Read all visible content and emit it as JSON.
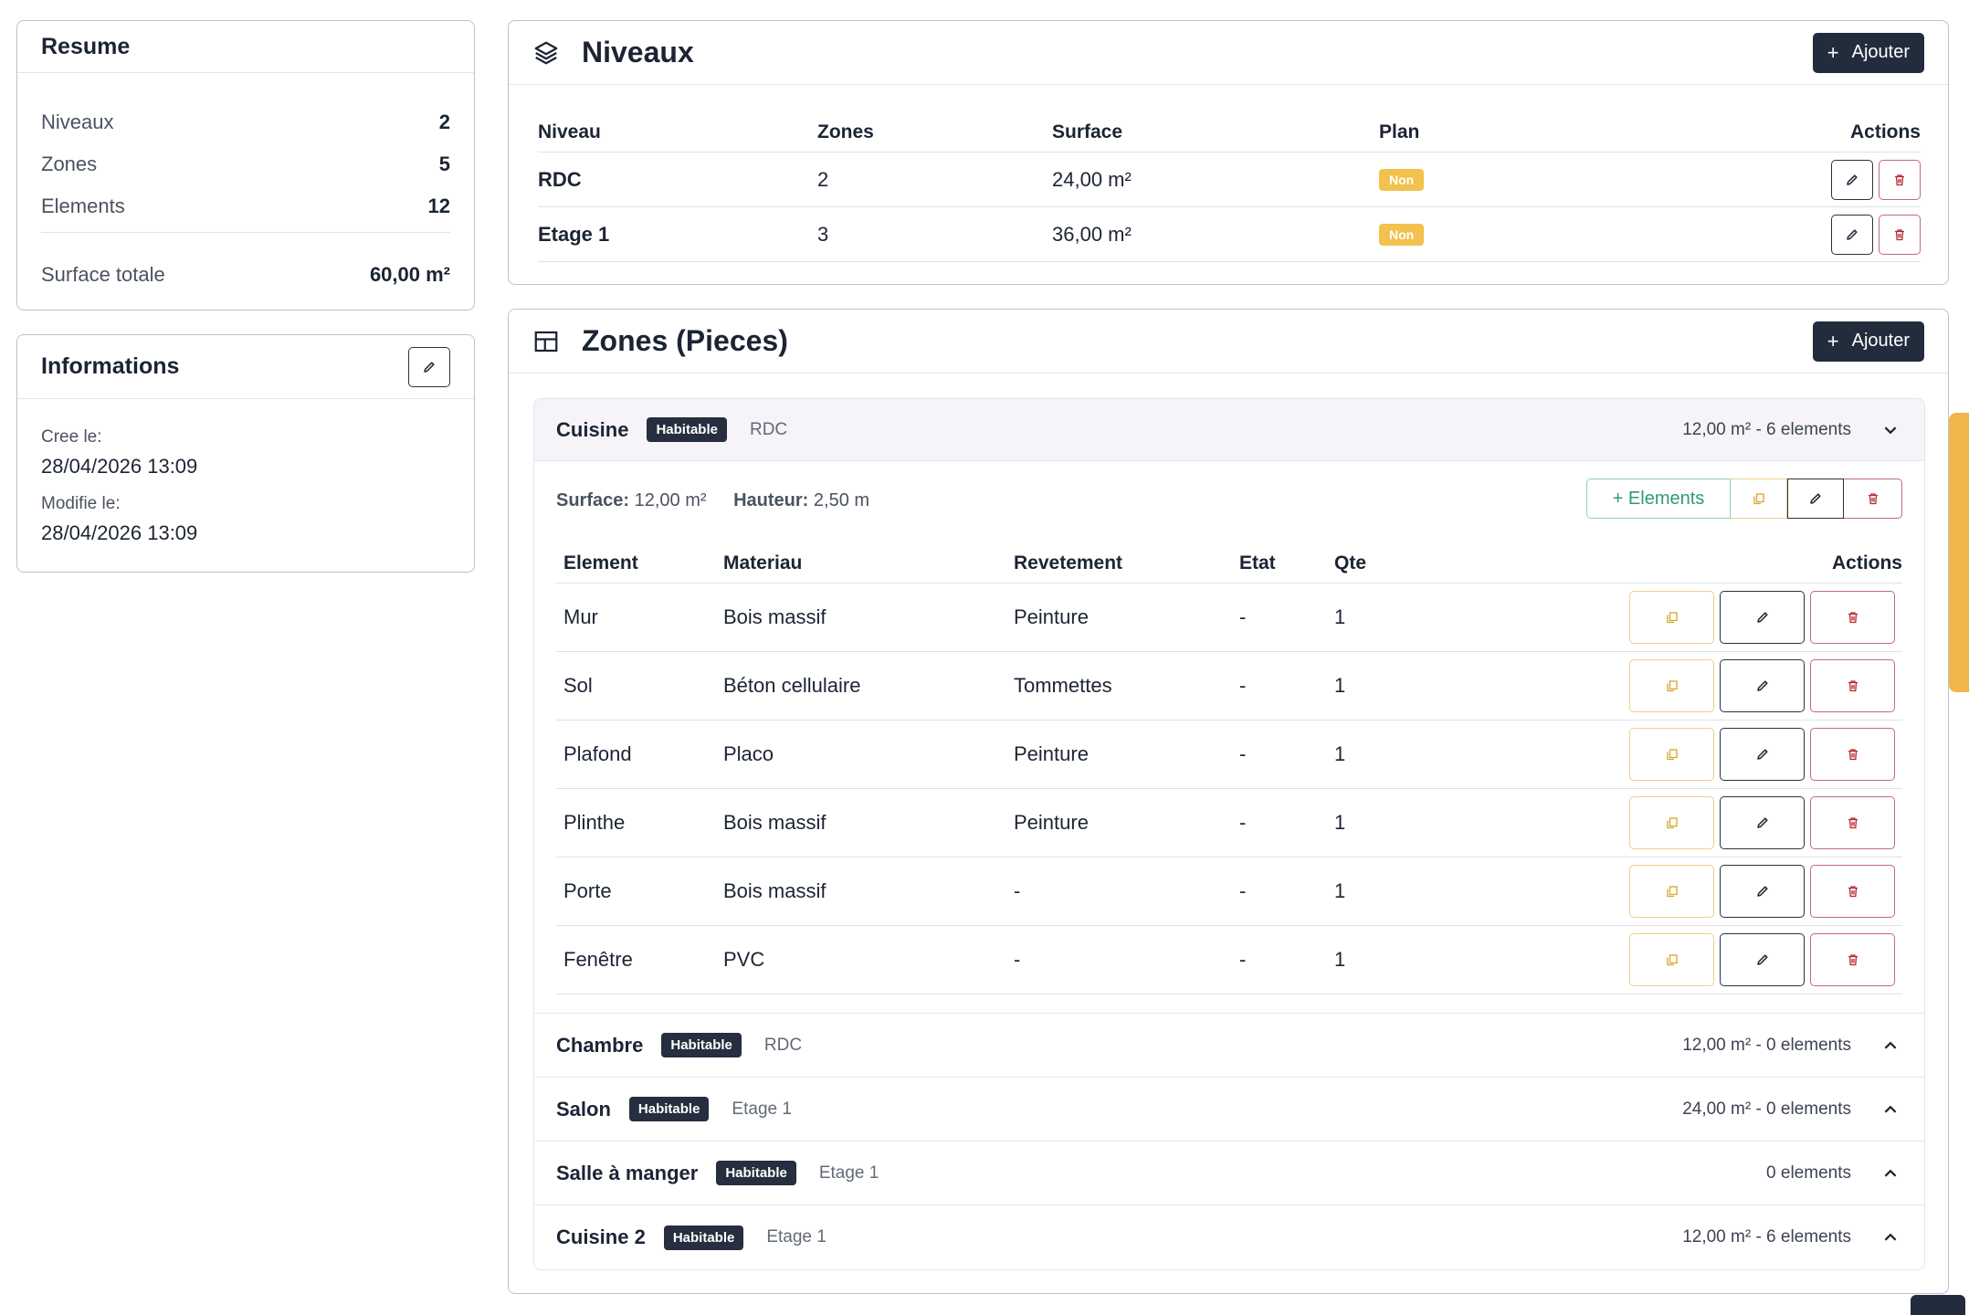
{
  "resume": {
    "title": "Resume",
    "rows": [
      {
        "label": "Niveaux",
        "value": "2"
      },
      {
        "label": "Zones",
        "value": "5"
      },
      {
        "label": "Elements",
        "value": "12"
      }
    ],
    "total_label": "Surface totale",
    "total_value": "60,00 m²"
  },
  "infos": {
    "title": "Informations",
    "created_label": "Cree le:",
    "created_value": "28/04/2026 13:09",
    "modified_label": "Modifie le:",
    "modified_value": "28/04/2026 13:09",
    "edit_icon": "pencil-icon"
  },
  "niveaux": {
    "title": "Niveaux",
    "icon": "layers-icon",
    "add_label": "Ajouter",
    "headers": [
      "Niveau",
      "Zones",
      "Surface",
      "Plan",
      "Actions"
    ],
    "rows": [
      {
        "name": "RDC",
        "zones": "2",
        "surface": "24,00 m²",
        "plan": "Non"
      },
      {
        "name": "Etage 1",
        "zones": "3",
        "surface": "36,00 m²",
        "plan": "Non"
      }
    ]
  },
  "zones": {
    "title": "Zones (Pieces)",
    "icon": "grid-icon",
    "add_label": "Ajouter",
    "list": [
      {
        "name": "Cuisine",
        "type": "Habitable",
        "niveau": "RDC",
        "meta": "12,00 m² - 6 elements",
        "open": true
      },
      {
        "name": "Chambre",
        "type": "Habitable",
        "niveau": "RDC",
        "meta": "12,00 m² - 0 elements",
        "open": false
      },
      {
        "name": "Salon",
        "type": "Habitable",
        "niveau": "Etage 1",
        "meta": "24,00 m² - 0 elements",
        "open": false
      },
      {
        "name": "Salle à manger",
        "type": "Habitable",
        "niveau": "Etage 1",
        "meta": "0 elements",
        "open": false
      },
      {
        "name": "Cuisine 2",
        "type": "Habitable",
        "niveau": "Etage 1",
        "meta": "12,00 m² - 6 elements",
        "open": false
      }
    ],
    "open_zone": {
      "surface_label": "Surface:",
      "surface_value": "12,00 m²",
      "hauteur_label": "Hauteur:",
      "hauteur_value": "2,50 m",
      "elements_btn": "+ Elements",
      "headers": [
        "Element",
        "Materiau",
        "Revetement",
        "Etat",
        "Qte",
        "Actions"
      ],
      "rows": [
        {
          "element": "Mur",
          "materiau": "Bois massif",
          "revetement": "Peinture",
          "etat": "-",
          "qte": "1"
        },
        {
          "element": "Sol",
          "materiau": "Béton cellulaire",
          "revetement": "Tommettes",
          "etat": "-",
          "qte": "1"
        },
        {
          "element": "Plafond",
          "materiau": "Placo",
          "revetement": "Peinture",
          "etat": "-",
          "qte": "1"
        },
        {
          "element": "Plinthe",
          "materiau": "Bois massif",
          "revetement": "Peinture",
          "etat": "-",
          "qte": "1"
        },
        {
          "element": "Porte",
          "materiau": "Bois massif",
          "revetement": "-",
          "etat": "-",
          "qte": "1"
        },
        {
          "element": "Fenêtre",
          "materiau": "PVC",
          "revetement": "-",
          "etat": "-",
          "qte": "1"
        }
      ]
    }
  },
  "colors": {
    "dark": "#232c3d",
    "badge_yellow": "#f2c14e",
    "danger": "#b5252f",
    "copy_yellow": "#d9a52b",
    "success": "#2f9a7d"
  }
}
